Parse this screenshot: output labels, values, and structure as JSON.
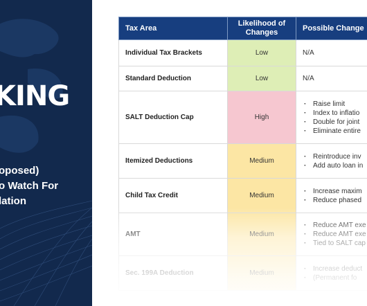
{
  "left_panel": {
    "headline": "KING",
    "subtitle_lines": [
      "oposed)",
      "o Watch For",
      "lation"
    ]
  },
  "table": {
    "headers": [
      "Tax Area",
      "Likelihood of Changes",
      "Possible Change"
    ],
    "rows": [
      {
        "area": "Individual Tax Brackets",
        "likelihood": "Low",
        "level": "low",
        "changes": [
          "N/A"
        ]
      },
      {
        "area": "Standard Deduction",
        "likelihood": "Low",
        "level": "low",
        "changes": [
          "N/A"
        ]
      },
      {
        "area": "SALT Deduction Cap",
        "likelihood": "High",
        "level": "high",
        "changes": [
          "Raise limit",
          "Index to inflatio",
          "Double for joint",
          "Eliminate entire"
        ]
      },
      {
        "area": "Itemized Deductions",
        "likelihood": "Medium",
        "level": "medium",
        "changes": [
          "Reintroduce inv",
          "Add auto loan in"
        ]
      },
      {
        "area": "Child Tax Credit",
        "likelihood": "Medium",
        "level": "medium",
        "changes": [
          "Increase maxim",
          "Reduce phased"
        ]
      },
      {
        "area": "AMT",
        "likelihood": "Medium",
        "level": "medium",
        "changes": [
          "Reduce AMT exe",
          "Reduce AMT exe",
          "Tied to SALT cap"
        ]
      },
      {
        "area": "Sec. 199A Deduction",
        "likelihood": "Medium",
        "level": "medium",
        "changes": [
          "Increase deduct",
          "(Permanent fo"
        ]
      }
    ]
  },
  "colors": {
    "panel_bg": "#12294d",
    "header_bg": "#173e7f",
    "low": "#deeeb6",
    "high": "#f6c7d0",
    "medium": "#fce6a4"
  }
}
